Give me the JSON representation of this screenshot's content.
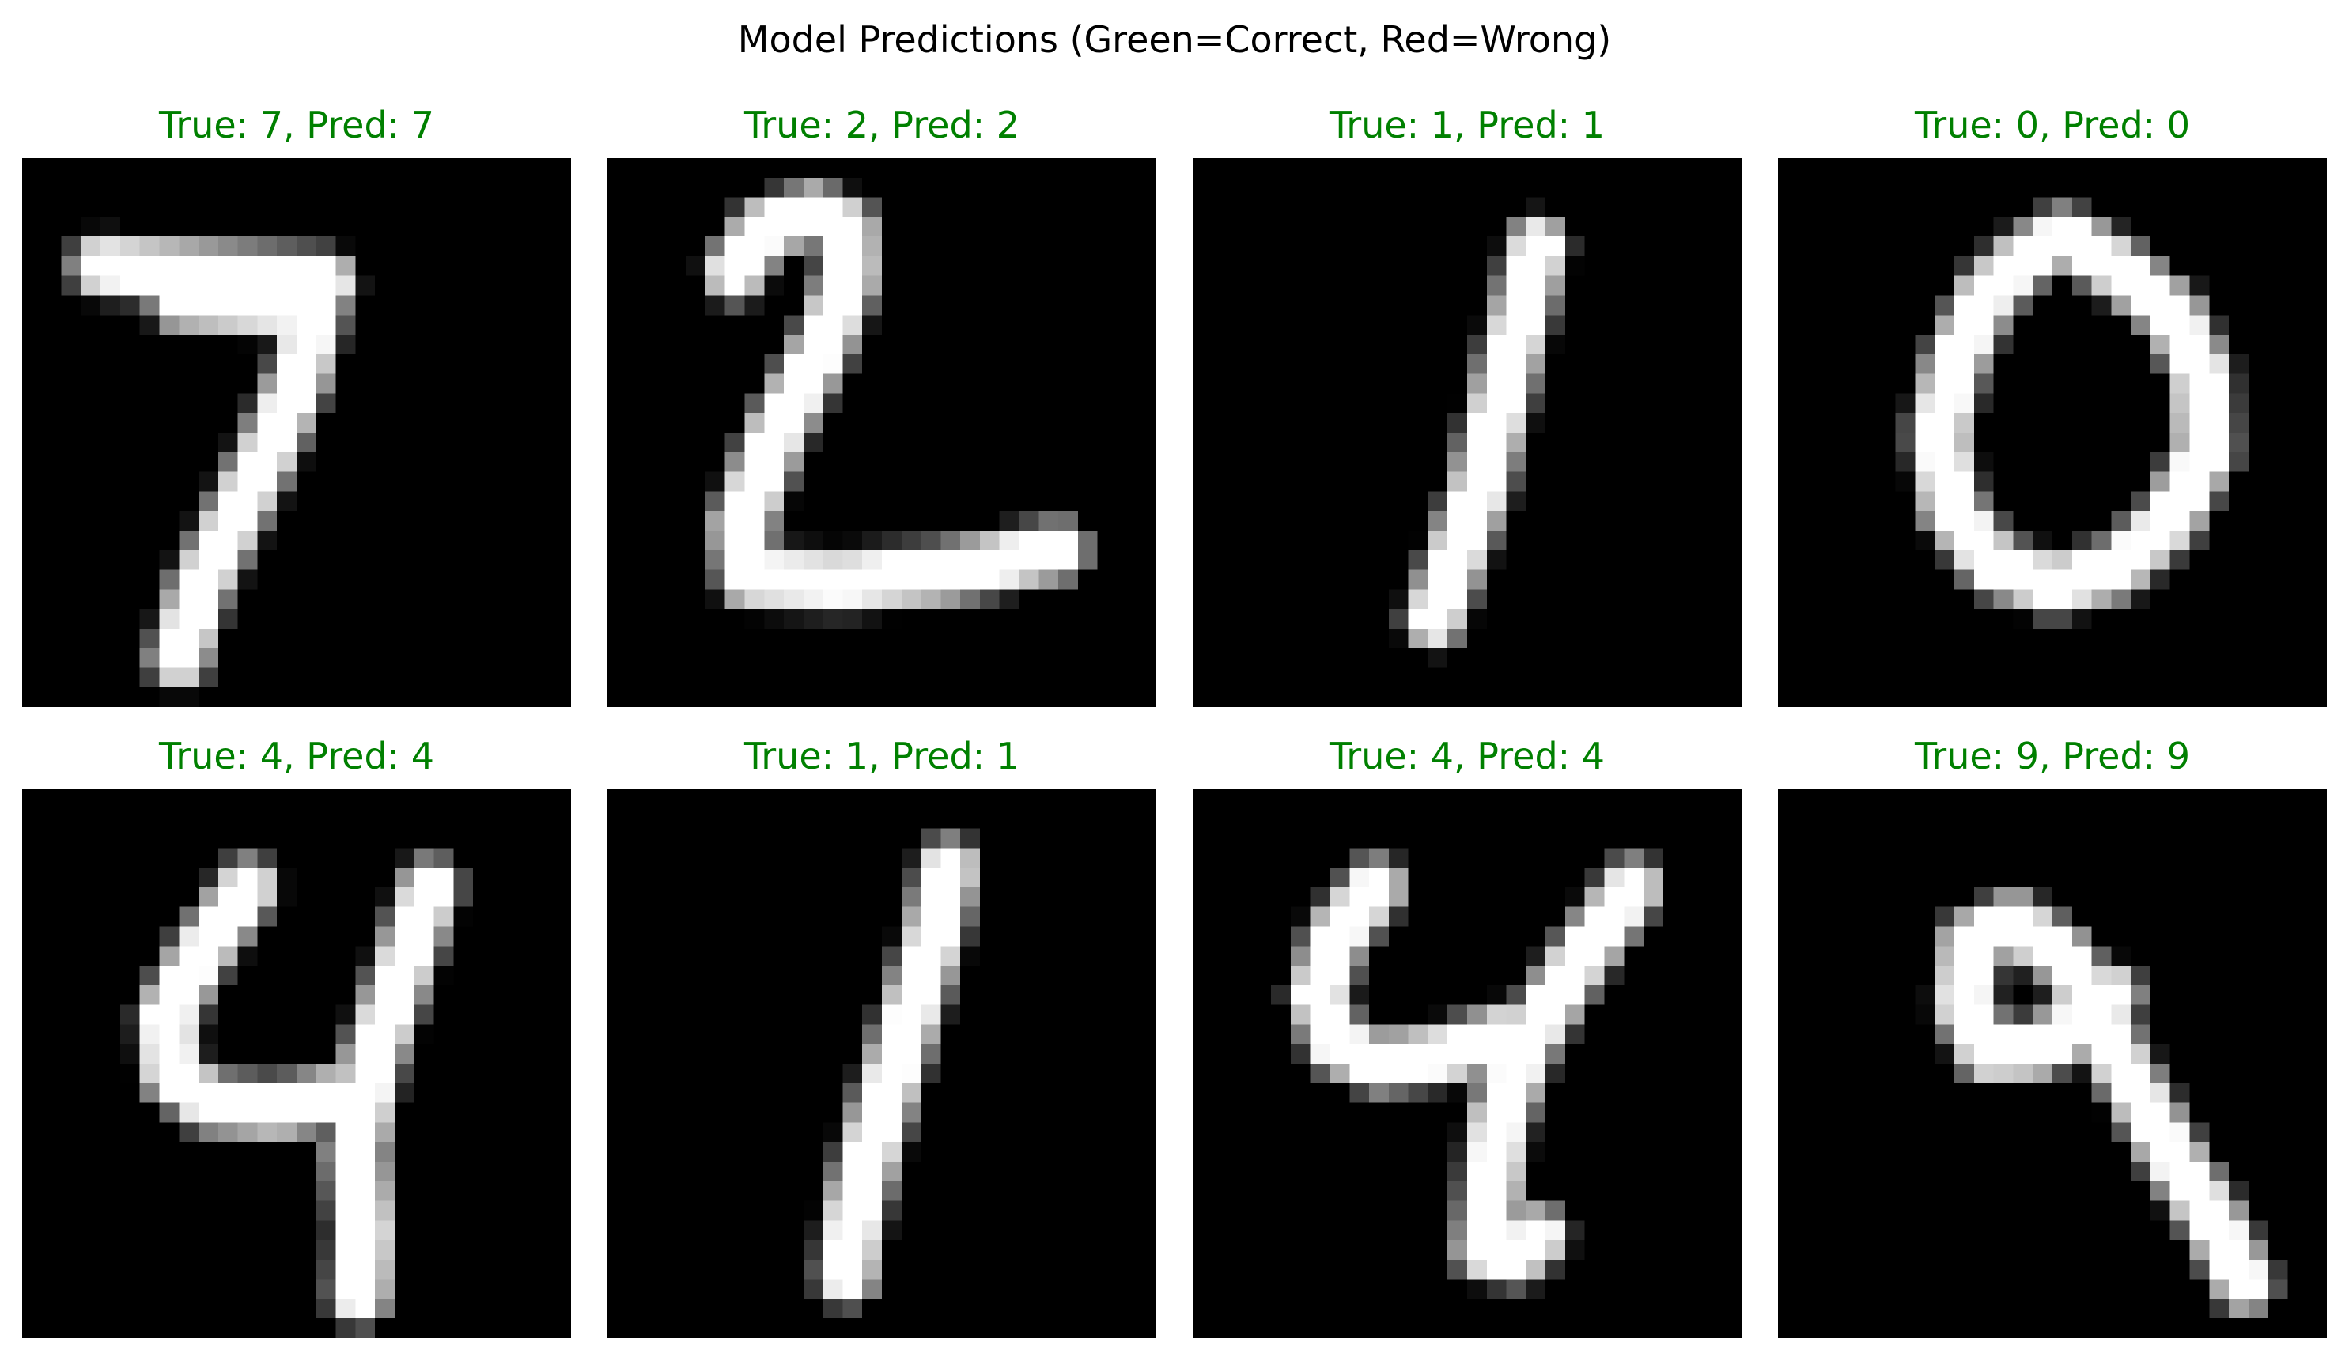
{
  "figure": {
    "suptitle": "Model Predictions (Green=Correct, Red=Wrong)",
    "legend_colors": {
      "correct": "#008000",
      "wrong": "#ff0000"
    }
  },
  "panels": [
    {
      "title": "True: 7, Pred: 7",
      "true_label": 7,
      "pred_label": 7,
      "correct": true,
      "image": "handwritten-digit-7"
    },
    {
      "title": "True: 2, Pred: 2",
      "true_label": 2,
      "pred_label": 2,
      "correct": true,
      "image": "handwritten-digit-2"
    },
    {
      "title": "True: 1, Pred: 1",
      "true_label": 1,
      "pred_label": 1,
      "correct": true,
      "image": "handwritten-digit-1"
    },
    {
      "title": "True: 0, Pred: 0",
      "true_label": 0,
      "pred_label": 0,
      "correct": true,
      "image": "handwritten-digit-0"
    },
    {
      "title": "True: 4, Pred: 4",
      "true_label": 4,
      "pred_label": 4,
      "correct": true,
      "image": "handwritten-digit-4"
    },
    {
      "title": "True: 1, Pred: 1",
      "true_label": 1,
      "pred_label": 1,
      "correct": true,
      "image": "handwritten-digit-1"
    },
    {
      "title": "True: 4, Pred: 4",
      "true_label": 4,
      "pred_label": 4,
      "correct": true,
      "image": "handwritten-digit-4"
    },
    {
      "title": "True: 9, Pred: 9",
      "true_label": 9,
      "pred_label": 9,
      "correct": true,
      "image": "handwritten-digit-9"
    }
  ]
}
